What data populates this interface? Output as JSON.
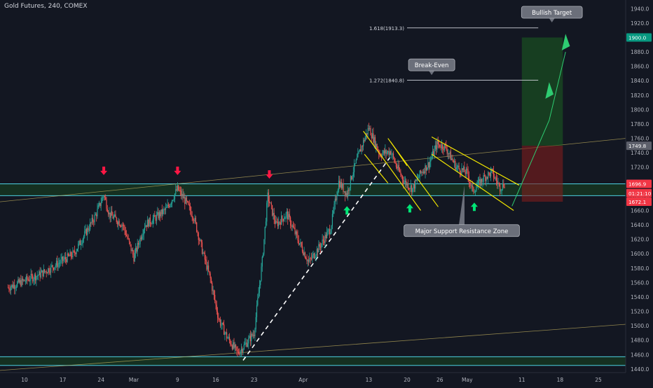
{
  "header": {
    "symbol_title": "Gold Futures, 240, COMEX"
  },
  "colors": {
    "background": "#131722",
    "up": "#26a69a",
    "down": "#ef5350",
    "channel": "#f0e500",
    "zone_line": "#4dd0e1",
    "target_zone": "#1b5e20",
    "stop_zone": "#7f1d1d",
    "price_green": "#089981",
    "price_red": "#f23645",
    "signal_up": "#00e676",
    "signal_down": "#ff1744"
  },
  "chart_data": {
    "type": "candlestick",
    "y_axis": {
      "ylim": [
        1435,
        1952
      ],
      "ticks": [
        1440,
        1460,
        1480,
        1500,
        1520,
        1540,
        1560,
        1580,
        1600,
        1620,
        1640,
        1660,
        1680,
        1700,
        1720,
        1740,
        1760,
        1780,
        1800,
        1820,
        1840,
        1860,
        1880,
        1900,
        1920,
        1940
      ],
      "price_labels": [
        {
          "value": 1900.0,
          "text": "1900.0",
          "style": "green"
        },
        {
          "value": 1749.8,
          "text": "1749.8",
          "style": "gray"
        },
        {
          "value": 1696.9,
          "text": "1696.9",
          "style": "red"
        },
        {
          "value": 1684.0,
          "text": "01:21:10",
          "style": "red"
        },
        {
          "value": 1672.1,
          "text": "1672.1",
          "style": "red"
        }
      ]
    },
    "x_axis": {
      "ticks": [
        {
          "label": "10",
          "day": 0
        },
        {
          "label": "17",
          "day": 7
        },
        {
          "label": "24",
          "day": 14
        },
        {
          "label": "Mar",
          "day": 20
        },
        {
          "label": "9",
          "day": 28
        },
        {
          "label": "16",
          "day": 35
        },
        {
          "label": "23",
          "day": 42
        },
        {
          "label": "Apr",
          "day": 51
        },
        {
          "label": "13",
          "day": 63
        },
        {
          "label": "20",
          "day": 70
        },
        {
          "label": "26",
          "day": 76
        },
        {
          "label": "May",
          "day": 81
        },
        {
          "label": "11",
          "day": 91
        },
        {
          "label": "18",
          "day": 98
        },
        {
          "label": "25",
          "day": 105
        }
      ]
    },
    "price_path": [
      {
        "day": -3,
        "close": 1553
      },
      {
        "day": 3,
        "close": 1572
      },
      {
        "day": 9,
        "close": 1600
      },
      {
        "day": 13,
        "close": 1653
      },
      {
        "day": 14.5,
        "close": 1682
      },
      {
        "day": 15.5,
        "close": 1655
      },
      {
        "day": 18,
        "close": 1640
      },
      {
        "day": 20,
        "close": 1595
      },
      {
        "day": 22,
        "close": 1640
      },
      {
        "day": 24,
        "close": 1650
      },
      {
        "day": 26,
        "close": 1662
      },
      {
        "day": 28,
        "close": 1690
      },
      {
        "day": 29.5,
        "close": 1672
      },
      {
        "day": 31,
        "close": 1650
      },
      {
        "day": 32.5,
        "close": 1605
      },
      {
        "day": 34,
        "close": 1565
      },
      {
        "day": 35.5,
        "close": 1510
      },
      {
        "day": 37,
        "close": 1485
      },
      {
        "day": 39,
        "close": 1462
      },
      {
        "day": 40.5,
        "close": 1475
      },
      {
        "day": 42,
        "close": 1490
      },
      {
        "day": 43.5,
        "close": 1590
      },
      {
        "day": 44.5,
        "close": 1680
      },
      {
        "day": 46,
        "close": 1640
      },
      {
        "day": 48,
        "close": 1655
      },
      {
        "day": 50,
        "close": 1620
      },
      {
        "day": 52,
        "close": 1588
      },
      {
        "day": 54,
        "close": 1610
      },
      {
        "day": 56,
        "close": 1635
      },
      {
        "day": 57.5,
        "close": 1700
      },
      {
        "day": 59,
        "close": 1682
      },
      {
        "day": 60,
        "close": 1712
      },
      {
        "day": 61.5,
        "close": 1745
      },
      {
        "day": 63,
        "close": 1775
      },
      {
        "day": 65,
        "close": 1738
      },
      {
        "day": 67,
        "close": 1742
      },
      {
        "day": 68,
        "close": 1722
      },
      {
        "day": 69.5,
        "close": 1700
      },
      {
        "day": 71,
        "close": 1690
      },
      {
        "day": 72.5,
        "close": 1712
      },
      {
        "day": 74,
        "close": 1725
      },
      {
        "day": 75.5,
        "close": 1752
      },
      {
        "day": 77,
        "close": 1748
      },
      {
        "day": 79,
        "close": 1720
      },
      {
        "day": 81,
        "close": 1712
      },
      {
        "day": 82,
        "close": 1687
      },
      {
        "day": 84,
        "close": 1705
      },
      {
        "day": 85.5,
        "close": 1713
      },
      {
        "day": 87,
        "close": 1692
      },
      {
        "day": 88,
        "close": 1698
      }
    ],
    "levels": [
      {
        "label": "1.618(1913.3)",
        "value": 1913.3,
        "from_day": 70,
        "to_day": 94
      },
      {
        "label": "1.272(1840.8)",
        "value": 1840.8,
        "from_day": 70,
        "to_day": 94
      }
    ],
    "zones": [
      {
        "name": "Major Support Resistance Zone",
        "top": 1696.9,
        "bottom": 1680.5
      },
      {
        "name": "support-band",
        "top": 1457,
        "bottom": 1445
      }
    ],
    "position": {
      "entry": 1749.8,
      "target": 1900.0,
      "stop": 1672.1,
      "from_day": 91,
      "to_day": 98.5
    },
    "annotations": [
      {
        "text": "Bullish Target",
        "value": 1935,
        "day": 96.5
      },
      {
        "text": "Break-Even",
        "value": 1862,
        "day": 74.5
      },
      {
        "text": "Major Support Resistance Zone",
        "value": 1632,
        "day": 80
      }
    ],
    "markers": [
      {
        "kind": "down",
        "day": 14.5,
        "value": 1713
      },
      {
        "kind": "down",
        "day": 28,
        "value": 1713
      },
      {
        "kind": "down",
        "day": 44.8,
        "value": 1708
      },
      {
        "kind": "up",
        "day": 59,
        "value": 1662
      },
      {
        "kind": "up",
        "day": 70.5,
        "value": 1665
      },
      {
        "kind": "up",
        "day": 82.3,
        "value": 1667
      }
    ]
  }
}
